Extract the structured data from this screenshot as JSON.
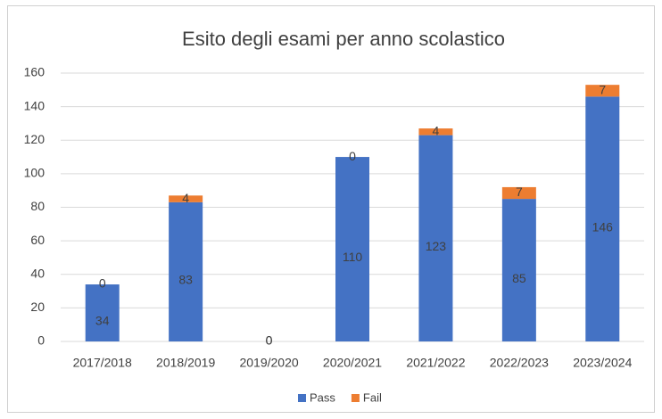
{
  "chart_data": {
    "type": "stacked_bar",
    "title": "Esito degli esami per anno scolastico",
    "categories": [
      "2017/2018",
      "2018/2019",
      "2019/2020",
      "2020/2021",
      "2021/2022",
      "2022/2023",
      "2023/2024"
    ],
    "series": [
      {
        "name": "Pass",
        "color": "#4472c4",
        "values": [
          34,
          83,
          0,
          110,
          123,
          85,
          146
        ]
      },
      {
        "name": "Fail",
        "color": "#ed7d31",
        "values": [
          0,
          4,
          0,
          0,
          4,
          7,
          7
        ]
      }
    ],
    "ylim": [
      0,
      160
    ],
    "yticks": [
      0,
      20,
      40,
      60,
      80,
      100,
      120,
      140,
      160
    ],
    "grid": true,
    "legend": "bottom"
  }
}
